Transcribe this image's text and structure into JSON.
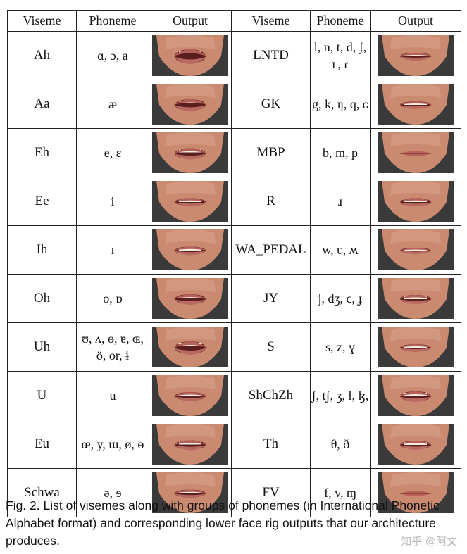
{
  "table": {
    "headers": [
      "Viseme",
      "Phoneme",
      "Output",
      "Viseme",
      "Phoneme",
      "Output"
    ],
    "rows": [
      {
        "left": {
          "viseme": "Ah",
          "phoneme": "ɑ, ɔ, a"
        },
        "right": {
          "viseme": "LNTD",
          "phoneme": "l, n, t, d, ʄ, ʟ, ɾ"
        }
      },
      {
        "left": {
          "viseme": "Aa",
          "phoneme": "æ"
        },
        "right": {
          "viseme": "GK",
          "phoneme": "g, k, ŋ, q, ɢ"
        }
      },
      {
        "left": {
          "viseme": "Eh",
          "phoneme": "e, ɛ"
        },
        "right": {
          "viseme": "MBP",
          "phoneme": "b, m, p"
        }
      },
      {
        "left": {
          "viseme": "Ee",
          "phoneme": "i"
        },
        "right": {
          "viseme": "R",
          "phoneme": "ɹ"
        }
      },
      {
        "left": {
          "viseme": "Ih",
          "phoneme": "ɪ"
        },
        "right": {
          "viseme": "WA_PEDAL",
          "phoneme": "w, ʋ, ʍ"
        }
      },
      {
        "left": {
          "viseme": "Oh",
          "phoneme": "o, ɒ"
        },
        "right": {
          "viseme": "JY",
          "phoneme": "j, dʒ, c, ɟ"
        }
      },
      {
        "left": {
          "viseme": "Uh",
          "phoneme": "ʊ, ʌ, ɵ, ɐ, ɶ, ö, or, ɨ"
        },
        "right": {
          "viseme": "S",
          "phoneme": "s, z, ɣ"
        }
      },
      {
        "left": {
          "viseme": "U",
          "phoneme": "u"
        },
        "right": {
          "viseme": "ShChZh",
          "phoneme": "ʃ, tʃ, ʒ, ɬ, ɮ,"
        }
      },
      {
        "left": {
          "viseme": "Eu",
          "phoneme": "œ, y, ɯ, ø, ɵ"
        },
        "right": {
          "viseme": "Th",
          "phoneme": "θ, ð"
        }
      },
      {
        "left": {
          "viseme": "Schwa",
          "phoneme": "ə, ɘ"
        },
        "right": {
          "viseme": "FV",
          "phoneme": "f, v, ɱ"
        }
      }
    ]
  },
  "caption": "Fig. 2.  List of visemes along with groups of phonemes (in International Phonetic Alphabet format) and corresponding lower face rig outputs that our architecture produces.",
  "watermark": "知乎 @阿文"
}
